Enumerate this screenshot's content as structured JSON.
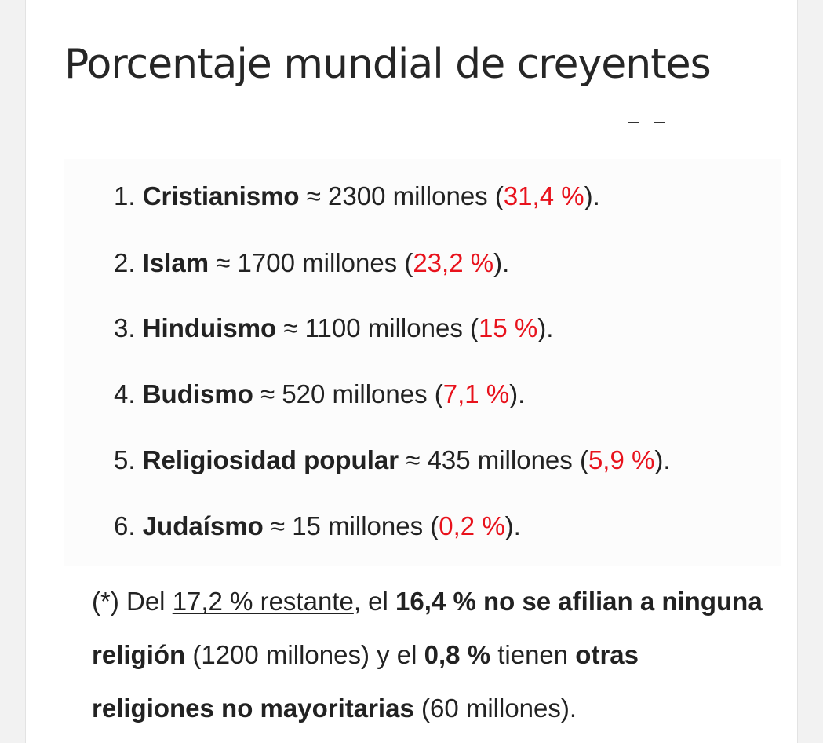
{
  "page": {
    "title": "Porcentaje mundial de creyentes"
  },
  "list": {
    "items": [
      {
        "num": "1.",
        "name": "Cristianismo",
        "text": " ≈ 2300 millones (",
        "pct": "31,4 %",
        "end": ")."
      },
      {
        "num": "2.",
        "name": "Islam",
        "text": " ≈ 1700 millones (",
        "pct": "23,2 %",
        "end": ")."
      },
      {
        "num": "3.",
        "name": "Hinduismo",
        "text": " ≈ 1100 millones (",
        "pct": "15 %",
        "end": ")."
      },
      {
        "num": "4.",
        "name": "Budismo",
        "text": " ≈ 520 millones (",
        "pct": "7,1 %",
        "end": ")."
      },
      {
        "num": "5.",
        "name": "Religiosidad popular",
        "text": " ≈ 435 millones (",
        "pct": "5,9 %",
        "end": ")."
      },
      {
        "num": "6.",
        "name": "Judaísmo",
        "text": " ≈ 15 millones (",
        "pct": "0,2 %",
        "end": ")."
      }
    ]
  },
  "note": {
    "lead": "(*) Del ",
    "link": "17,2 % restante",
    "t1": ", el ",
    "b1": "16,4 % no se afilian a ninguna religión",
    "t2": " (1200 millones) y el ",
    "b2": "0,8 %",
    "t3": " tienen ",
    "b3": "otras religiones no mayoritarias",
    "t4": " (60 millones)."
  },
  "colors": {
    "percent": "#e8121c",
    "text": "#222222",
    "title": "#262626"
  }
}
